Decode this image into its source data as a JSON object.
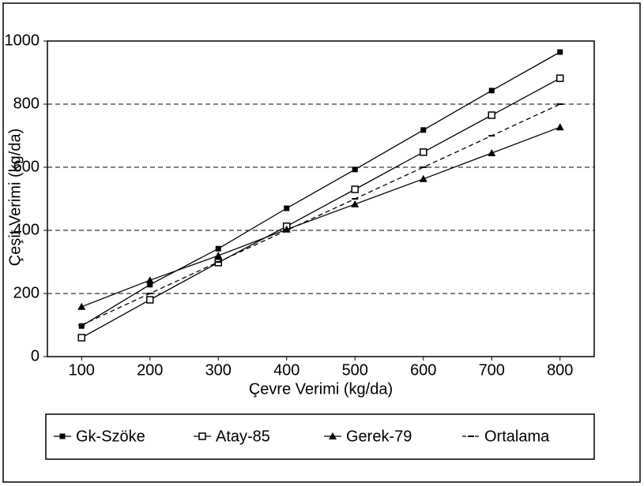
{
  "chart_data": {
    "type": "line",
    "x_label": "Çevre Verimi (kg/da)",
    "y_label": "Çeşit Verimi (kg/da)",
    "x": [
      100,
      200,
      300,
      400,
      500,
      600,
      700,
      800
    ],
    "series": [
      {
        "name": "Gk-Szöke",
        "color": "#000000",
        "marker": "filled-square",
        "dash": false,
        "values": [
          97,
          228,
          342,
          470,
          593,
          718,
          843,
          965
        ]
      },
      {
        "name": "Atay-85",
        "color": "#000000",
        "marker": "open-square",
        "dash": false,
        "values": [
          60,
          180,
          298,
          413,
          530,
          648,
          765,
          882
        ]
      },
      {
        "name": "Gerek-79",
        "color": "#000000",
        "marker": "triangle",
        "dash": false,
        "values": [
          158,
          242,
          320,
          403,
          483,
          563,
          645,
          727
        ]
      },
      {
        "name": "Ortalama",
        "color": "#000000",
        "marker": "dash",
        "dash": true,
        "values": [
          100,
          200,
          300,
          400,
          500,
          600,
          700,
          800
        ]
      }
    ],
    "xlim": [
      50,
      850
    ],
    "xticks": [
      100,
      200,
      300,
      400,
      500,
      600,
      700,
      800
    ],
    "ylim": [
      0,
      1000
    ],
    "yticks": [
      0,
      200,
      400,
      600,
      800,
      1000
    ],
    "grid": true,
    "legend": "bottom"
  }
}
